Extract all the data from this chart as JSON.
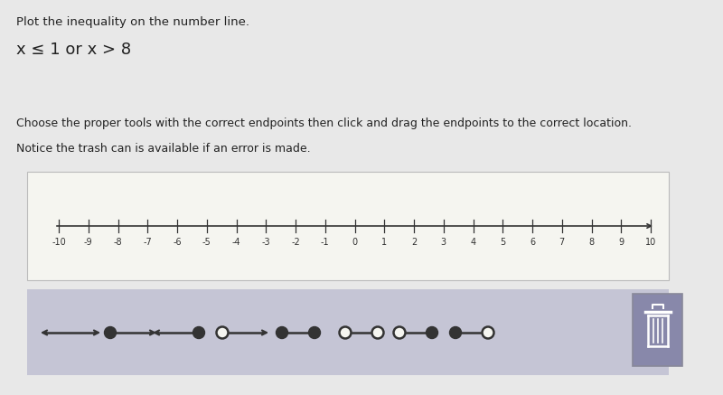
{
  "bg_color": "#e8e8e8",
  "title_line1": "Plot the inequality on the number line.",
  "inequality": "x ≤ 1 or x > 8",
  "instruction1": "Choose the proper tools with the correct endpoints then click and drag the endpoints to the correct location.",
  "instruction2": "Notice the trash can is available if an error is made.",
  "number_line_min": -10,
  "number_line_max": 10,
  "number_line_bg": "#f5f5f0",
  "toolbar_bg": "#c5c5d5",
  "tick_color": "#333333",
  "label_color": "#333333",
  "tool_color": "#333333",
  "text_color": "#222222"
}
